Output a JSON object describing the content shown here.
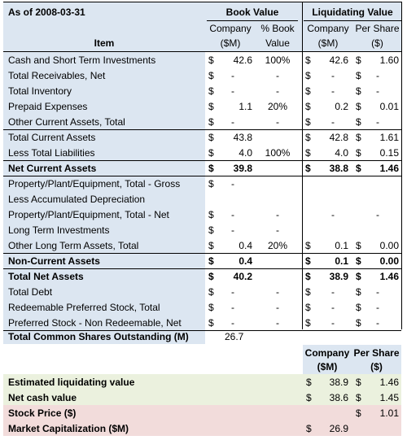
{
  "header": {
    "as_of": "As of 2008-03-31",
    "book_value": "Book Value",
    "liquidating_value": "Liquidating Value",
    "item": "Item",
    "bv_company_1": "Company",
    "bv_company_2": "($M)",
    "bv_pct_1": "% Book",
    "bv_pct_2": "Value",
    "lv_company_1": "Company",
    "lv_company_2": "($M)",
    "lv_pershare_1": "Per Share",
    "lv_pershare_2": "($)"
  },
  "rows": [
    {
      "label": "Cash and Short Term Investments",
      "bold": false,
      "bv_d": "$",
      "bv": "42.6",
      "pct": "100%",
      "lv_d": "$",
      "lv": "42.6",
      "ps_d": "$",
      "ps": "1.60"
    },
    {
      "label": "Total Receivables, Net",
      "bold": false,
      "bv_d": "$",
      "bv": "-",
      "pct": "-",
      "lv_d": "$",
      "lv": "-",
      "ps_d": "$",
      "ps": "-"
    },
    {
      "label": "Total Inventory",
      "bold": false,
      "bv_d": "$",
      "bv": "-",
      "pct": "-",
      "lv_d": "$",
      "lv": "-",
      "ps_d": "$",
      "ps": "-"
    },
    {
      "label": "Prepaid Expenses",
      "bold": false,
      "bv_d": "$",
      "bv": "1.1",
      "pct": "20%",
      "lv_d": "$",
      "lv": "0.2",
      "ps_d": "$",
      "ps": "0.01"
    },
    {
      "label": "Other Current Assets, Total",
      "bold": false,
      "bv_d": "$",
      "bv": "-",
      "pct": "-",
      "lv_d": "$",
      "lv": "-",
      "ps_d": "$",
      "ps": "-"
    },
    {
      "label": "Total Current Assets",
      "bold": false,
      "bv_d": "$",
      "bv": "43.8",
      "pct": "",
      "lv_d": "$",
      "lv": "42.8",
      "ps_d": "$",
      "ps": "1.61"
    },
    {
      "label": "Less Total Liabilities",
      "bold": false,
      "bv_d": "$",
      "bv": "4.0",
      "pct": "100%",
      "lv_d": "$",
      "lv": "4.0",
      "ps_d": "$",
      "ps": "0.15"
    },
    {
      "label": "Net Current Assets",
      "bold": true,
      "bv_d": "$",
      "bv": "39.8",
      "pct": "",
      "lv_d": "$",
      "lv": "38.8",
      "ps_d": "$",
      "ps": "1.46"
    },
    {
      "label": "Property/Plant/Equipment, Total - Gross",
      "bold": false,
      "bv_d": "$",
      "bv": "-",
      "pct": "",
      "lv_d": "",
      "lv": "",
      "ps_d": "",
      "ps": ""
    },
    {
      "label": "Less Accumulated Depreciation",
      "bold": false,
      "bv_d": "",
      "bv": "",
      "pct": "",
      "lv_d": "",
      "lv": "",
      "ps_d": "",
      "ps": ""
    },
    {
      "label": "Property/Plant/Equipment, Total - Net",
      "bold": false,
      "bv_d": "$",
      "bv": "-",
      "pct": "-",
      "lv_d": "",
      "lv": "-",
      "ps_d": "",
      "ps": "-"
    },
    {
      "label": "Long Term Investments",
      "bold": false,
      "bv_d": "$",
      "bv": "-",
      "pct": "-",
      "lv_d": "",
      "lv": "",
      "ps_d": "",
      "ps": ""
    },
    {
      "label": "Other Long Term Assets, Total",
      "bold": false,
      "bv_d": "$",
      "bv": "0.4",
      "pct": "20%",
      "lv_d": "$",
      "lv": "0.1",
      "ps_d": "$",
      "ps": "0.00"
    },
    {
      "label": "Non-Current Assets",
      "bold": true,
      "bv_d": "$",
      "bv": "0.4",
      "pct": "",
      "lv_d": "$",
      "lv": "0.1",
      "ps_d": "$",
      "ps": "0.00"
    },
    {
      "label": "Total Net Assets",
      "bold": true,
      "bv_d": "$",
      "bv": "40.2",
      "pct": "",
      "lv_d": "$",
      "lv": "38.9",
      "ps_d": "$",
      "ps": "1.46"
    },
    {
      "label": "Total Debt",
      "bold": false,
      "bv_d": "$",
      "bv": "-",
      "pct": "-",
      "lv_d": "$",
      "lv": "-",
      "ps_d": "$",
      "ps": "-"
    },
    {
      "label": "Redeemable Preferred Stock, Total",
      "bold": false,
      "bv_d": "$",
      "bv": "-",
      "pct": "-",
      "lv_d": "$",
      "lv": "-",
      "ps_d": "$",
      "ps": "-"
    },
    {
      "label": "Preferred Stock - Non Redeemable, Net",
      "bold": false,
      "bv_d": "$",
      "bv": "-",
      "pct": "-",
      "lv_d": "$",
      "lv": "-",
      "ps_d": "$",
      "ps": "-"
    }
  ],
  "shares": {
    "label": "Total Common Shares Outstanding (M)",
    "value": "26.7"
  },
  "summary": {
    "company_1": "Company",
    "company_2": "($M)",
    "pershare_1": "Per Share",
    "pershare_2": "($)",
    "rows": [
      {
        "label": "Estimated liquidating value",
        "c_d": "$",
        "c": "38.9",
        "p_d": "$",
        "p": "1.46"
      },
      {
        "label": "Net cash value",
        "c_d": "$",
        "c": "38.6",
        "p_d": "$",
        "p": "1.45"
      },
      {
        "label": "Stock Price ($)",
        "c_d": "",
        "c": "",
        "p_d": "$",
        "p": "1.01"
      },
      {
        "label": "Market Capitalization ($M)",
        "c_d": "$",
        "c": "26.9",
        "p_d": "",
        "p": ""
      }
    ]
  },
  "colors": {
    "blue_fill": "#dce6f1",
    "green_fill": "#ebf1de",
    "pink_fill": "#f2dcdb"
  }
}
